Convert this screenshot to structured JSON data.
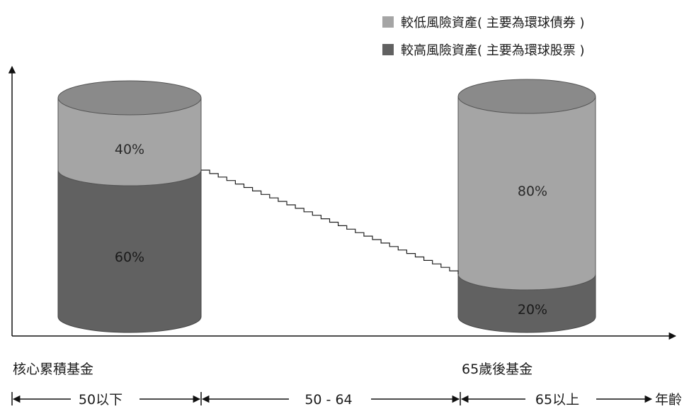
{
  "legend": [
    {
      "label": "較低風險資產( 主要為環球債券 )",
      "color": "#a5a5a5"
    },
    {
      "label": "較高風險資產( 主要為環球股票 )",
      "color": "#616161"
    }
  ],
  "funds": [
    {
      "name": "核心累積基金",
      "segments": [
        {
          "label": "40%",
          "value": 40,
          "color": "#a5a5a5"
        },
        {
          "label": "60%",
          "value": 60,
          "color": "#616161"
        }
      ]
    },
    {
      "name": "65歲後基金",
      "segments": [
        {
          "label": "80%",
          "value": 80,
          "color": "#a5a5a5"
        },
        {
          "label": "20%",
          "value": 20,
          "color": "#616161"
        }
      ]
    }
  ],
  "age_ranges": [
    {
      "label": "50以下"
    },
    {
      "label": "50 - 64"
    },
    {
      "label": "65以上"
    }
  ],
  "axis_label": "年齡"
}
